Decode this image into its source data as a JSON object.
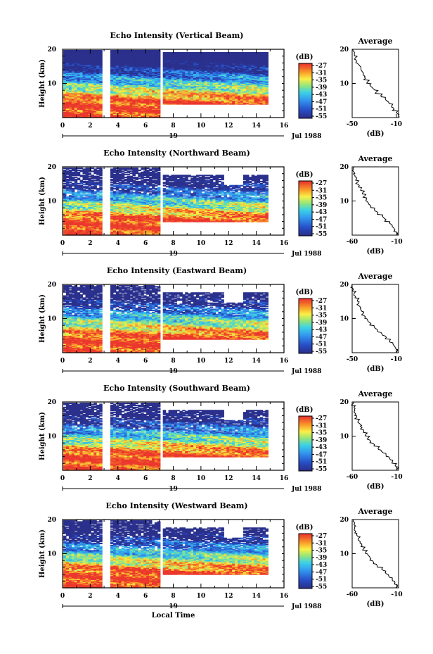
{
  "chart_data": [
    {
      "type": "heatmap",
      "title": "Echo Intensity (Vertical Beam)",
      "ylabel": "Height (km)",
      "xlabel": "",
      "xlim": [
        0,
        16
      ],
      "ylim": [
        0,
        20
      ],
      "x_ticks": [
        "0",
        "2",
        "4",
        "6",
        "8",
        "10",
        "12",
        "14",
        "16"
      ],
      "y_ticks": [
        "10",
        "20"
      ],
      "date_day": "19",
      "date_label": "Jul 1988",
      "data_gaps_hours": [
        [
          2.8,
          3.3
        ],
        [
          6.9,
          7.1
        ]
      ],
      "data_end_hours": 14.8,
      "colorbar": {
        "unit": "(dB)",
        "ticks": [
          "-27",
          "-31",
          "-35",
          "-39",
          "-43",
          "-47",
          "-51",
          "-55"
        ]
      },
      "avg": {
        "title": "Average",
        "xlabel": "(dB)",
        "xticks": [
          "-50",
          "-10"
        ],
        "yticks": [
          "10",
          "20"
        ],
        "xlim": [
          -50,
          -8
        ],
        "profile": [
          [
            -8,
            0.5
          ],
          [
            -10,
            1.5
          ],
          [
            -12,
            2.5
          ],
          [
            -14,
            3.5
          ],
          [
            -17,
            4.5
          ],
          [
            -20,
            5.5
          ],
          [
            -24,
            6.5
          ],
          [
            -28,
            7.5
          ],
          [
            -31,
            8.5
          ],
          [
            -34,
            9.5
          ],
          [
            -36,
            10.5
          ],
          [
            -38,
            11.5
          ],
          [
            -40,
            12.5
          ],
          [
            -41,
            13.5
          ],
          [
            -42,
            14.5
          ],
          [
            -44,
            15.5
          ],
          [
            -46,
            16.5
          ],
          [
            -47,
            17.5
          ],
          [
            -48,
            18.5
          ],
          [
            -49,
            19.5
          ]
        ]
      }
    },
    {
      "type": "heatmap",
      "title": "Echo Intensity (Northward Beam)",
      "ylabel": "Height (km)",
      "xlabel": "",
      "xlim": [
        0,
        16
      ],
      "ylim": [
        0,
        20
      ],
      "x_ticks": [
        "0",
        "2",
        "4",
        "6",
        "8",
        "10",
        "12",
        "14",
        "16"
      ],
      "y_ticks": [
        "10",
        "20"
      ],
      "date_day": "19",
      "date_label": "Jul 1988",
      "data_gaps_hours": [
        [
          2.8,
          3.3
        ],
        [
          6.9,
          7.1
        ]
      ],
      "data_end_hours": 14.8,
      "colorbar": {
        "unit": "(dB)",
        "ticks": [
          "-27",
          "-31",
          "-35",
          "-39",
          "-43",
          "-47",
          "-51",
          "-55"
        ]
      },
      "avg": {
        "title": "Average",
        "xlabel": "(dB)",
        "xticks": [
          "-60",
          "-10"
        ],
        "yticks": [
          "10",
          "20"
        ],
        "xlim": [
          -60,
          -8
        ],
        "profile": [
          [
            -9,
            0.5
          ],
          [
            -12,
            1.5
          ],
          [
            -15,
            2.5
          ],
          [
            -18,
            3.5
          ],
          [
            -22,
            4.5
          ],
          [
            -26,
            5.5
          ],
          [
            -31,
            6.5
          ],
          [
            -35,
            7.5
          ],
          [
            -39,
            8.5
          ],
          [
            -42,
            9.5
          ],
          [
            -44,
            10.5
          ],
          [
            -46,
            11.5
          ],
          [
            -48,
            12.5
          ],
          [
            -50,
            13.5
          ],
          [
            -52,
            14.5
          ],
          [
            -54,
            15.5
          ],
          [
            -55,
            16.5
          ],
          [
            -57,
            17.5
          ],
          [
            -58,
            18.5
          ],
          [
            -59,
            19.5
          ]
        ]
      }
    },
    {
      "type": "heatmap",
      "title": "Echo Intensity (Eastward Beam)",
      "ylabel": "Height (km)",
      "xlabel": "",
      "xlim": [
        0,
        16
      ],
      "ylim": [
        0,
        20
      ],
      "x_ticks": [
        "0",
        "2",
        "4",
        "6",
        "8",
        "10",
        "12",
        "14",
        "16"
      ],
      "y_ticks": [
        "10",
        "20"
      ],
      "date_day": "19",
      "date_label": "Jul 1988",
      "data_gaps_hours": [
        [
          2.8,
          3.3
        ],
        [
          6.9,
          7.1
        ]
      ],
      "data_end_hours": 14.8,
      "colorbar": {
        "unit": "(dB)",
        "ticks": [
          "-27",
          "-31",
          "-35",
          "-39",
          "-43",
          "-47",
          "-51",
          "-55"
        ]
      },
      "avg": {
        "title": "Average",
        "xlabel": "(dB)",
        "xticks": [
          "-50",
          "-10"
        ],
        "yticks": [
          "10",
          "20"
        ],
        "xlim": [
          -50,
          -8
        ],
        "profile": [
          [
            -9,
            0.5
          ],
          [
            -11,
            1.5
          ],
          [
            -13,
            2.5
          ],
          [
            -16,
            3.5
          ],
          [
            -19,
            4.5
          ],
          [
            -23,
            5.5
          ],
          [
            -27,
            6.5
          ],
          [
            -30,
            7.5
          ],
          [
            -33,
            8.5
          ],
          [
            -36,
            9.5
          ],
          [
            -38,
            10.5
          ],
          [
            -40,
            11.5
          ],
          [
            -42,
            12.5
          ],
          [
            -43,
            13.5
          ],
          [
            -44,
            14.5
          ],
          [
            -45,
            15.5
          ],
          [
            -47,
            16.5
          ],
          [
            -48,
            17.5
          ],
          [
            -49,
            18.5
          ],
          [
            -50,
            19.5
          ]
        ]
      }
    },
    {
      "type": "heatmap",
      "title": "Echo Intensity (Southward Beam)",
      "ylabel": "Height (km)",
      "xlabel": "",
      "xlim": [
        0,
        16
      ],
      "ylim": [
        0,
        20
      ],
      "x_ticks": [
        "0",
        "2",
        "4",
        "6",
        "8",
        "10",
        "12",
        "14",
        "16"
      ],
      "y_ticks": [
        "10",
        "20"
      ],
      "date_day": "19",
      "date_label": "Jul 1988",
      "data_gaps_hours": [
        [
          2.8,
          3.3
        ],
        [
          6.9,
          7.1
        ]
      ],
      "data_end_hours": 14.8,
      "colorbar": {
        "unit": "(dB)",
        "ticks": [
          "-27",
          "-31",
          "-35",
          "-39",
          "-43",
          "-47",
          "-51",
          "-55"
        ]
      },
      "avg": {
        "title": "Average",
        "xlabel": "(dB)",
        "xticks": [
          "-60",
          "-10"
        ],
        "yticks": [
          "10",
          "20"
        ],
        "xlim": [
          -60,
          -8
        ],
        "profile": [
          [
            -9,
            0.5
          ],
          [
            -12,
            1.5
          ],
          [
            -15,
            2.5
          ],
          [
            -18,
            3.5
          ],
          [
            -22,
            4.5
          ],
          [
            -27,
            5.5
          ],
          [
            -31,
            6.5
          ],
          [
            -35,
            7.5
          ],
          [
            -39,
            8.5
          ],
          [
            -42,
            9.5
          ],
          [
            -45,
            10.5
          ],
          [
            -47,
            11.5
          ],
          [
            -49,
            12.5
          ],
          [
            -51,
            13.5
          ],
          [
            -53,
            14.5
          ],
          [
            -55,
            15.5
          ],
          [
            -56,
            16.5
          ],
          [
            -57,
            17.5
          ],
          [
            -58,
            18.5
          ],
          [
            -59,
            19.5
          ]
        ]
      }
    },
    {
      "type": "heatmap",
      "title": "Echo Intensity (Westward Beam)",
      "ylabel": "Height (km)",
      "xlabel": "Local Time",
      "xlim": [
        0,
        16
      ],
      "ylim": [
        0,
        20
      ],
      "x_ticks": [
        "0",
        "2",
        "4",
        "6",
        "8",
        "10",
        "12",
        "14",
        "16"
      ],
      "y_ticks": [
        "10",
        "20"
      ],
      "date_day": "19",
      "date_label": "Jul 1988",
      "data_gaps_hours": [
        [
          2.8,
          3.3
        ],
        [
          6.9,
          7.1
        ]
      ],
      "data_end_hours": 14.8,
      "colorbar": {
        "unit": "(dB)",
        "ticks": [
          "-27",
          "-31",
          "-35",
          "-39",
          "-43",
          "-47",
          "-51",
          "-55"
        ]
      },
      "avg": {
        "title": "Average",
        "xlabel": "(dB)",
        "xticks": [
          "-60",
          "-10"
        ],
        "yticks": [
          "10",
          "20"
        ],
        "xlim": [
          -60,
          -8
        ],
        "profile": [
          [
            -9,
            0.5
          ],
          [
            -12,
            1.5
          ],
          [
            -15,
            2.5
          ],
          [
            -19,
            3.5
          ],
          [
            -23,
            4.5
          ],
          [
            -27,
            5.5
          ],
          [
            -32,
            6.5
          ],
          [
            -36,
            7.5
          ],
          [
            -39,
            8.5
          ],
          [
            -42,
            9.5
          ],
          [
            -45,
            10.5
          ],
          [
            -47,
            11.5
          ],
          [
            -49,
            12.5
          ],
          [
            -51,
            13.5
          ],
          [
            -53,
            14.5
          ],
          [
            -55,
            15.5
          ],
          [
            -56,
            16.5
          ],
          [
            -57,
            17.5
          ],
          [
            -58,
            18.5
          ],
          [
            -59,
            19.5
          ]
        ]
      }
    }
  ]
}
